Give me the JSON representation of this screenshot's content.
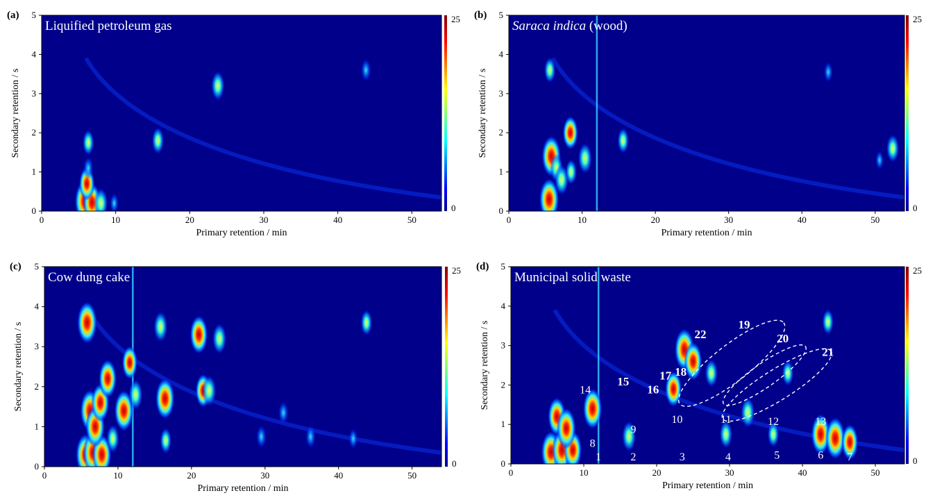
{
  "chart_data": [
    {
      "type": "heatmap",
      "tag": "(a)",
      "title": "Liquified petroleum gas",
      "title_italic": "",
      "title_rest": "",
      "xlabel": "Primary retention / min",
      "ylabel": "Secondary retention / s",
      "xlim": [
        0,
        54
      ],
      "ylim": [
        0,
        5
      ],
      "xticks": [
        0,
        10,
        20,
        30,
        40,
        50
      ],
      "yticks": [
        0,
        1,
        2,
        3,
        4,
        5
      ],
      "colorbar": {
        "min": 0,
        "max": 25
      },
      "peaks": [
        {
          "x": 5.8,
          "y": 0.25,
          "i": 25
        },
        {
          "x": 6.8,
          "y": 0.22,
          "i": 22
        },
        {
          "x": 8.0,
          "y": 0.2,
          "i": 16
        },
        {
          "x": 6.1,
          "y": 0.7,
          "i": 18
        },
        {
          "x": 6.3,
          "y": 1.1,
          "i": 10
        },
        {
          "x": 6.3,
          "y": 1.75,
          "i": 12
        },
        {
          "x": 15.7,
          "y": 1.8,
          "i": 13
        },
        {
          "x": 23.8,
          "y": 3.2,
          "i": 15
        },
        {
          "x": 43.8,
          "y": 3.6,
          "i": 10
        },
        {
          "x": 9.8,
          "y": 0.2,
          "i": 8
        }
      ],
      "annotations": []
    },
    {
      "type": "heatmap",
      "tag": "(b)",
      "title": "",
      "title_italic": "Saraca indica",
      "title_rest": " (wood)",
      "xlabel": "Primary retention / min",
      "ylabel": "Secondary retention / s",
      "xlim": [
        0,
        54
      ],
      "ylim": [
        0,
        5
      ],
      "xticks": [
        0,
        10,
        20,
        30,
        40,
        50
      ],
      "yticks": [
        0,
        1,
        2,
        3,
        4,
        5
      ],
      "colorbar": {
        "min": 0,
        "max": 25
      },
      "peaks": [
        {
          "x": 5.5,
          "y": 0.3,
          "i": 25
        },
        {
          "x": 5.8,
          "y": 1.4,
          "i": 24
        },
        {
          "x": 6.5,
          "y": 1.1,
          "i": 14
        },
        {
          "x": 7.2,
          "y": 0.8,
          "i": 16
        },
        {
          "x": 5.6,
          "y": 3.6,
          "i": 12
        },
        {
          "x": 8.4,
          "y": 2.0,
          "i": 18
        },
        {
          "x": 8.5,
          "y": 1.0,
          "i": 12
        },
        {
          "x": 10.4,
          "y": 1.35,
          "i": 16
        },
        {
          "x": 15.6,
          "y": 1.8,
          "i": 12
        },
        {
          "x": 43.6,
          "y": 3.55,
          "i": 8
        },
        {
          "x": 52.4,
          "y": 1.6,
          "i": 14
        },
        {
          "x": 50.6,
          "y": 1.3,
          "i": 7
        }
      ],
      "annotations": []
    },
    {
      "type": "heatmap",
      "tag": "(c)",
      "title": "Cow dung cake",
      "title_italic": "",
      "title_rest": "",
      "xlabel": "Primary retention / min",
      "ylabel": "Secondary retention / s",
      "xlim": [
        0,
        54
      ],
      "ylim": [
        0,
        5
      ],
      "xticks": [
        0,
        10,
        20,
        30,
        40,
        50
      ],
      "yticks": [
        0,
        1,
        2,
        3,
        4,
        5
      ],
      "colorbar": {
        "min": 0,
        "max": 25
      },
      "peaks": [
        {
          "x": 5.6,
          "y": 0.3,
          "i": 25
        },
        {
          "x": 6.6,
          "y": 0.35,
          "i": 25
        },
        {
          "x": 7.8,
          "y": 0.3,
          "i": 24
        },
        {
          "x": 5.8,
          "y": 3.6,
          "i": 25
        },
        {
          "x": 6.2,
          "y": 1.4,
          "i": 25
        },
        {
          "x": 6.9,
          "y": 1.0,
          "i": 24
        },
        {
          "x": 7.6,
          "y": 1.6,
          "i": 22
        },
        {
          "x": 8.6,
          "y": 2.2,
          "i": 22
        },
        {
          "x": 10.8,
          "y": 1.4,
          "i": 24
        },
        {
          "x": 11.6,
          "y": 2.6,
          "i": 18
        },
        {
          "x": 12.4,
          "y": 1.8,
          "i": 16
        },
        {
          "x": 15.8,
          "y": 3.5,
          "i": 16
        },
        {
          "x": 16.4,
          "y": 1.7,
          "i": 24
        },
        {
          "x": 21.0,
          "y": 3.3,
          "i": 22
        },
        {
          "x": 21.6,
          "y": 1.9,
          "i": 18
        },
        {
          "x": 22.4,
          "y": 1.9,
          "i": 16
        },
        {
          "x": 23.8,
          "y": 3.2,
          "i": 16
        },
        {
          "x": 29.5,
          "y": 0.75,
          "i": 10
        },
        {
          "x": 32.5,
          "y": 1.35,
          "i": 10
        },
        {
          "x": 36.2,
          "y": 0.75,
          "i": 10
        },
        {
          "x": 43.8,
          "y": 3.6,
          "i": 12
        },
        {
          "x": 42.0,
          "y": 0.7,
          "i": 8
        },
        {
          "x": 9.3,
          "y": 0.7,
          "i": 14
        },
        {
          "x": 16.5,
          "y": 0.65,
          "i": 12
        }
      ],
      "annotations": []
    },
    {
      "type": "heatmap",
      "tag": "(d)",
      "title": "Municipal solid waste",
      "title_italic": "",
      "title_rest": "",
      "xlabel": "Primary retention / min",
      "ylabel": "Secondary retention / s",
      "xlim": [
        0,
        54
      ],
      "ylim": [
        0,
        5
      ],
      "xticks": [
        0,
        10,
        20,
        30,
        40,
        50
      ],
      "yticks": [
        0,
        1,
        2,
        3,
        4,
        5
      ],
      "colorbar": {
        "min": 0,
        "max": 25
      },
      "peaks": [
        {
          "x": 5.5,
          "y": 0.3,
          "i": 25
        },
        {
          "x": 7.0,
          "y": 0.35,
          "i": 25
        },
        {
          "x": 8.5,
          "y": 0.35,
          "i": 22
        },
        {
          "x": 6.3,
          "y": 1.2,
          "i": 22
        },
        {
          "x": 7.6,
          "y": 0.9,
          "i": 24
        },
        {
          "x": 11.2,
          "y": 1.4,
          "i": 24
        },
        {
          "x": 16.2,
          "y": 0.7,
          "i": 16
        },
        {
          "x": 22.3,
          "y": 1.9,
          "i": 20
        },
        {
          "x": 23.8,
          "y": 2.9,
          "i": 25
        },
        {
          "x": 25.0,
          "y": 2.6,
          "i": 22
        },
        {
          "x": 27.5,
          "y": 2.3,
          "i": 14
        },
        {
          "x": 32.5,
          "y": 1.3,
          "i": 16
        },
        {
          "x": 42.5,
          "y": 0.75,
          "i": 24
        },
        {
          "x": 44.5,
          "y": 0.65,
          "i": 25
        },
        {
          "x": 46.5,
          "y": 0.55,
          "i": 20
        },
        {
          "x": 29.5,
          "y": 0.75,
          "i": 14
        },
        {
          "x": 36.0,
          "y": 0.75,
          "i": 12
        },
        {
          "x": 43.5,
          "y": 3.6,
          "i": 12
        },
        {
          "x": 38.0,
          "y": 2.3,
          "i": 12
        }
      ],
      "annotations": [
        {
          "text": "1",
          "x": 12.0,
          "y": 0.05,
          "bold": false
        },
        {
          "text": "2",
          "x": 16.8,
          "y": 0.05,
          "bold": false
        },
        {
          "text": "3",
          "x": 23.5,
          "y": 0.05,
          "bold": false
        },
        {
          "text": "4",
          "x": 29.8,
          "y": 0.05,
          "bold": false
        },
        {
          "text": "5",
          "x": 36.5,
          "y": 0.1,
          "bold": false
        },
        {
          "text": "6",
          "x": 42.5,
          "y": 0.1,
          "bold": false
        },
        {
          "text": "7",
          "x": 46.5,
          "y": 0.05,
          "bold": false
        },
        {
          "text": "8",
          "x": 11.2,
          "y": 0.4,
          "bold": false
        },
        {
          "text": "9",
          "x": 16.8,
          "y": 0.75,
          "bold": false
        },
        {
          "text": "10",
          "x": 22.8,
          "y": 1.0,
          "bold": false
        },
        {
          "text": "11",
          "x": 29.5,
          "y": 1.0,
          "bold": false
        },
        {
          "text": "12",
          "x": 36.0,
          "y": 0.95,
          "bold": false
        },
        {
          "text": "13",
          "x": 42.5,
          "y": 0.95,
          "bold": false
        },
        {
          "text": "14",
          "x": 10.2,
          "y": 1.75,
          "bold": false
        },
        {
          "text": "15",
          "x": 15.4,
          "y": 1.95,
          "bold": true
        },
        {
          "text": "16",
          "x": 19.5,
          "y": 1.75,
          "bold": true
        },
        {
          "text": "17",
          "x": 21.2,
          "y": 2.1,
          "bold": true
        },
        {
          "text": "18",
          "x": 23.3,
          "y": 2.2,
          "bold": true
        },
        {
          "text": "22",
          "x": 26.0,
          "y": 3.15,
          "bold": true
        },
        {
          "text": "19",
          "x": 32.0,
          "y": 3.4,
          "bold": true
        },
        {
          "text": "20",
          "x": 37.3,
          "y": 3.05,
          "bold": true
        },
        {
          "text": "21",
          "x": 43.5,
          "y": 2.7,
          "bold": true
        }
      ]
    }
  ]
}
